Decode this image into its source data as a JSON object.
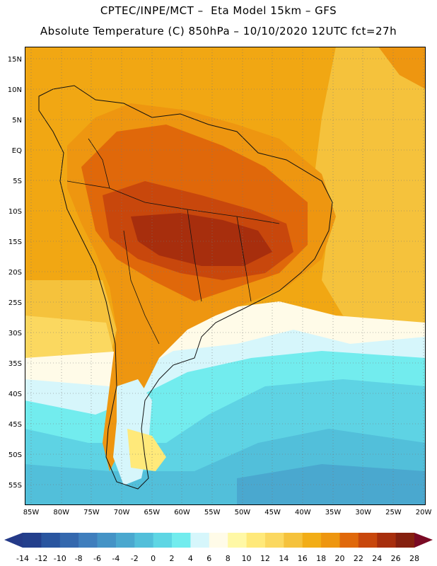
{
  "title_line1": "CPTEC/INPE/MCT –  Eta Model 15km – GFS",
  "title_line2": "Absolute Temperature (C) 850hPa – 10/10/2020 12UTC fct=27h",
  "lat_labels": [
    "15N",
    "10N",
    "5N",
    "EQ",
    "5S",
    "10S",
    "15S",
    "20S",
    "25S",
    "30S",
    "35S",
    "40S",
    "45S",
    "50S",
    "55S"
  ],
  "lon_labels": [
    "85W",
    "80W",
    "75W",
    "70W",
    "65W",
    "60W",
    "55W",
    "50W",
    "45W",
    "40W",
    "35W",
    "30W",
    "25W",
    "20W"
  ],
  "colorbar": {
    "ticks": [
      "-14",
      "-12",
      "-10",
      "-8",
      "-6",
      "-4",
      "-2",
      "0",
      "2",
      "4",
      "6",
      "8",
      "10",
      "12",
      "14",
      "16",
      "18",
      "20",
      "22",
      "24",
      "26",
      "28"
    ],
    "colors": [
      "#233f8c",
      "#29559f",
      "#3468ae",
      "#3f7ebd",
      "#4493c6",
      "#4aa8cf",
      "#52bfda",
      "#5ed6e4",
      "#72ecee",
      "#d6f6fb",
      "#fffbe8",
      "#fff8a6",
      "#ffe97a",
      "#fbd860",
      "#f5c23c",
      "#f2ad16",
      "#ee9610",
      "#e0680a",
      "#c8470c",
      "#a72e0d",
      "#85200f"
    ],
    "low_color": "#243a88",
    "high_color": "#7a0a24"
  },
  "colors": {
    "ocean_warm": "#f1a713",
    "ocean_yellow": "#f7c63c",
    "land_hot": "#dc6a0e",
    "land_hotter": "#c0470c",
    "land_hottest": "#a7320d",
    "cold_cyan": "#5ed3e4",
    "cold_blue": "#4aa8cf",
    "pale": "#d6f6fb",
    "cream": "#fffbe8"
  }
}
